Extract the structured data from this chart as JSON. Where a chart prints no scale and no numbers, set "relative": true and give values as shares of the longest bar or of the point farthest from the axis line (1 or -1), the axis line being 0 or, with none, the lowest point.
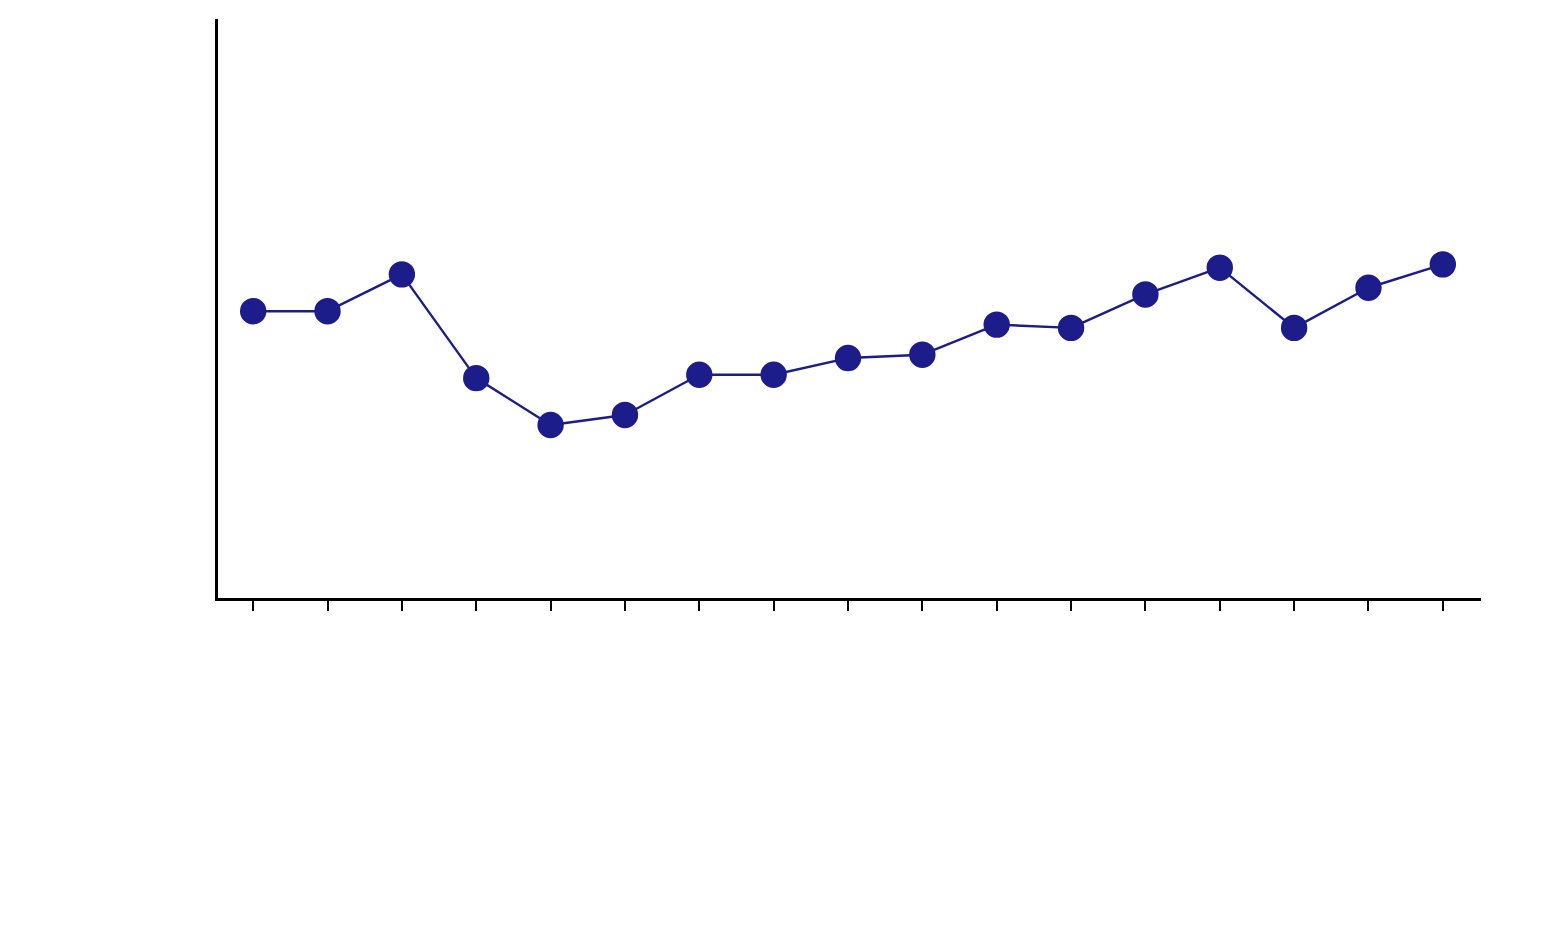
{
  "chart_data": {
    "type": "line",
    "relative": true,
    "categories": [
      null,
      null,
      null,
      null,
      null,
      null,
      null,
      null,
      null,
      null,
      null,
      null,
      null,
      null,
      null,
      null,
      null
    ],
    "series": [
      {
        "color": "#1c1c8a",
        "values": [
          0.86,
          0.86,
          0.97,
          0.66,
          0.52,
          0.55,
          0.67,
          0.67,
          0.72,
          0.73,
          0.82,
          0.81,
          0.91,
          0.99,
          0.81,
          0.93,
          1
        ]
      }
    ],
    "marker": "circle",
    "grid": false,
    "legend": false
  }
}
